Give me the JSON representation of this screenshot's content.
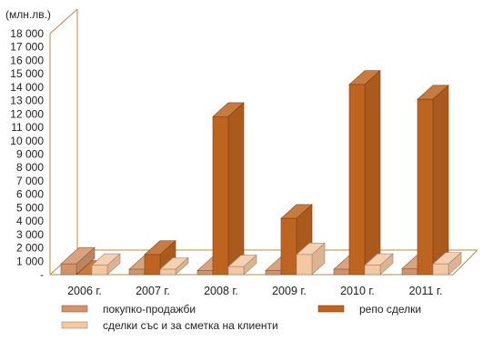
{
  "chart_data": {
    "type": "bar",
    "unit_label": "(млн.лв.)",
    "categories": [
      "2006 г.",
      "2007 г.",
      "2008 г.",
      "2009 г.",
      "2010 г.",
      "2011 г."
    ],
    "series": [
      {
        "name": "покупко-продажби",
        "values": [
          800,
          400,
          300,
          300,
          400,
          450
        ],
        "color": "#d3936a"
      },
      {
        "name": "репо сделки",
        "values": [
          0,
          1500,
          11800,
          4200,
          14200,
          13100
        ],
        "color": "#bd6420"
      },
      {
        "name": "сделки със и за сметка на клиенти",
        "values": [
          700,
          400,
          600,
          1500,
          700,
          800
        ],
        "color": "#f4c8a4"
      }
    ],
    "y_ticks": [
      "-",
      "1 000",
      "2 000",
      "3 000",
      "4 000",
      "5 000",
      "6 000",
      "7 000",
      "8 000",
      "9 000",
      "10 000",
      "11 000",
      "12 000",
      "13 000",
      "14 000",
      "15 000",
      "16 000",
      "17 000",
      "18 000"
    ],
    "ylim": [
      0,
      18000
    ],
    "legend": "bottom",
    "grid": false,
    "colors": {
      "frame": "#c08840"
    }
  }
}
